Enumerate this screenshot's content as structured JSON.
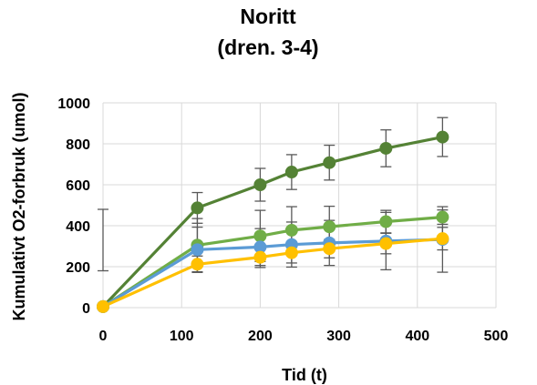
{
  "chart_data": {
    "type": "line",
    "title": [
      "Noritt",
      "(dren. 3-4)"
    ],
    "xlabel": "Tid (t)",
    "ylabel": "Kumulativt O2-forbruk (umol)",
    "xlim": [
      0,
      500
    ],
    "ylim": [
      0,
      1000
    ],
    "xticks": [
      "0",
      "100",
      "200",
      "300",
      "400",
      "500"
    ],
    "yticks": [
      "0",
      "200",
      "400",
      "600",
      "800",
      "1000"
    ],
    "grid": true,
    "x": [
      0,
      120,
      200,
      240,
      288,
      360,
      432
    ],
    "series": [
      {
        "color": "#548235",
        "values": [
          5,
          487,
          600,
          662,
          708,
          778,
          833
        ],
        "errors": [
          0,
          75,
          80,
          85,
          85,
          90,
          95
        ]
      },
      {
        "color": "#70AD47",
        "values": [
          5,
          305,
          350,
          378,
          395,
          420,
          442
        ],
        "errors": [
          0,
          130,
          125,
          115,
          100,
          55,
          35
        ]
      },
      {
        "color": "#5B9BD5",
        "values": [
          5,
          283,
          296,
          308,
          316,
          325,
          333
        ],
        "errors": [
          0,
          110,
          90,
          110,
          110,
          140,
          160
        ]
      },
      {
        "color": "#FFC000",
        "values": [
          5,
          212,
          246,
          268,
          288,
          313,
          337
        ],
        "errors": [
          0,
          40,
          50,
          50,
          45,
          50,
          55
        ]
      }
    ],
    "extra_error_bar": {
      "x": 0,
      "low": 180,
      "high": 480
    }
  }
}
